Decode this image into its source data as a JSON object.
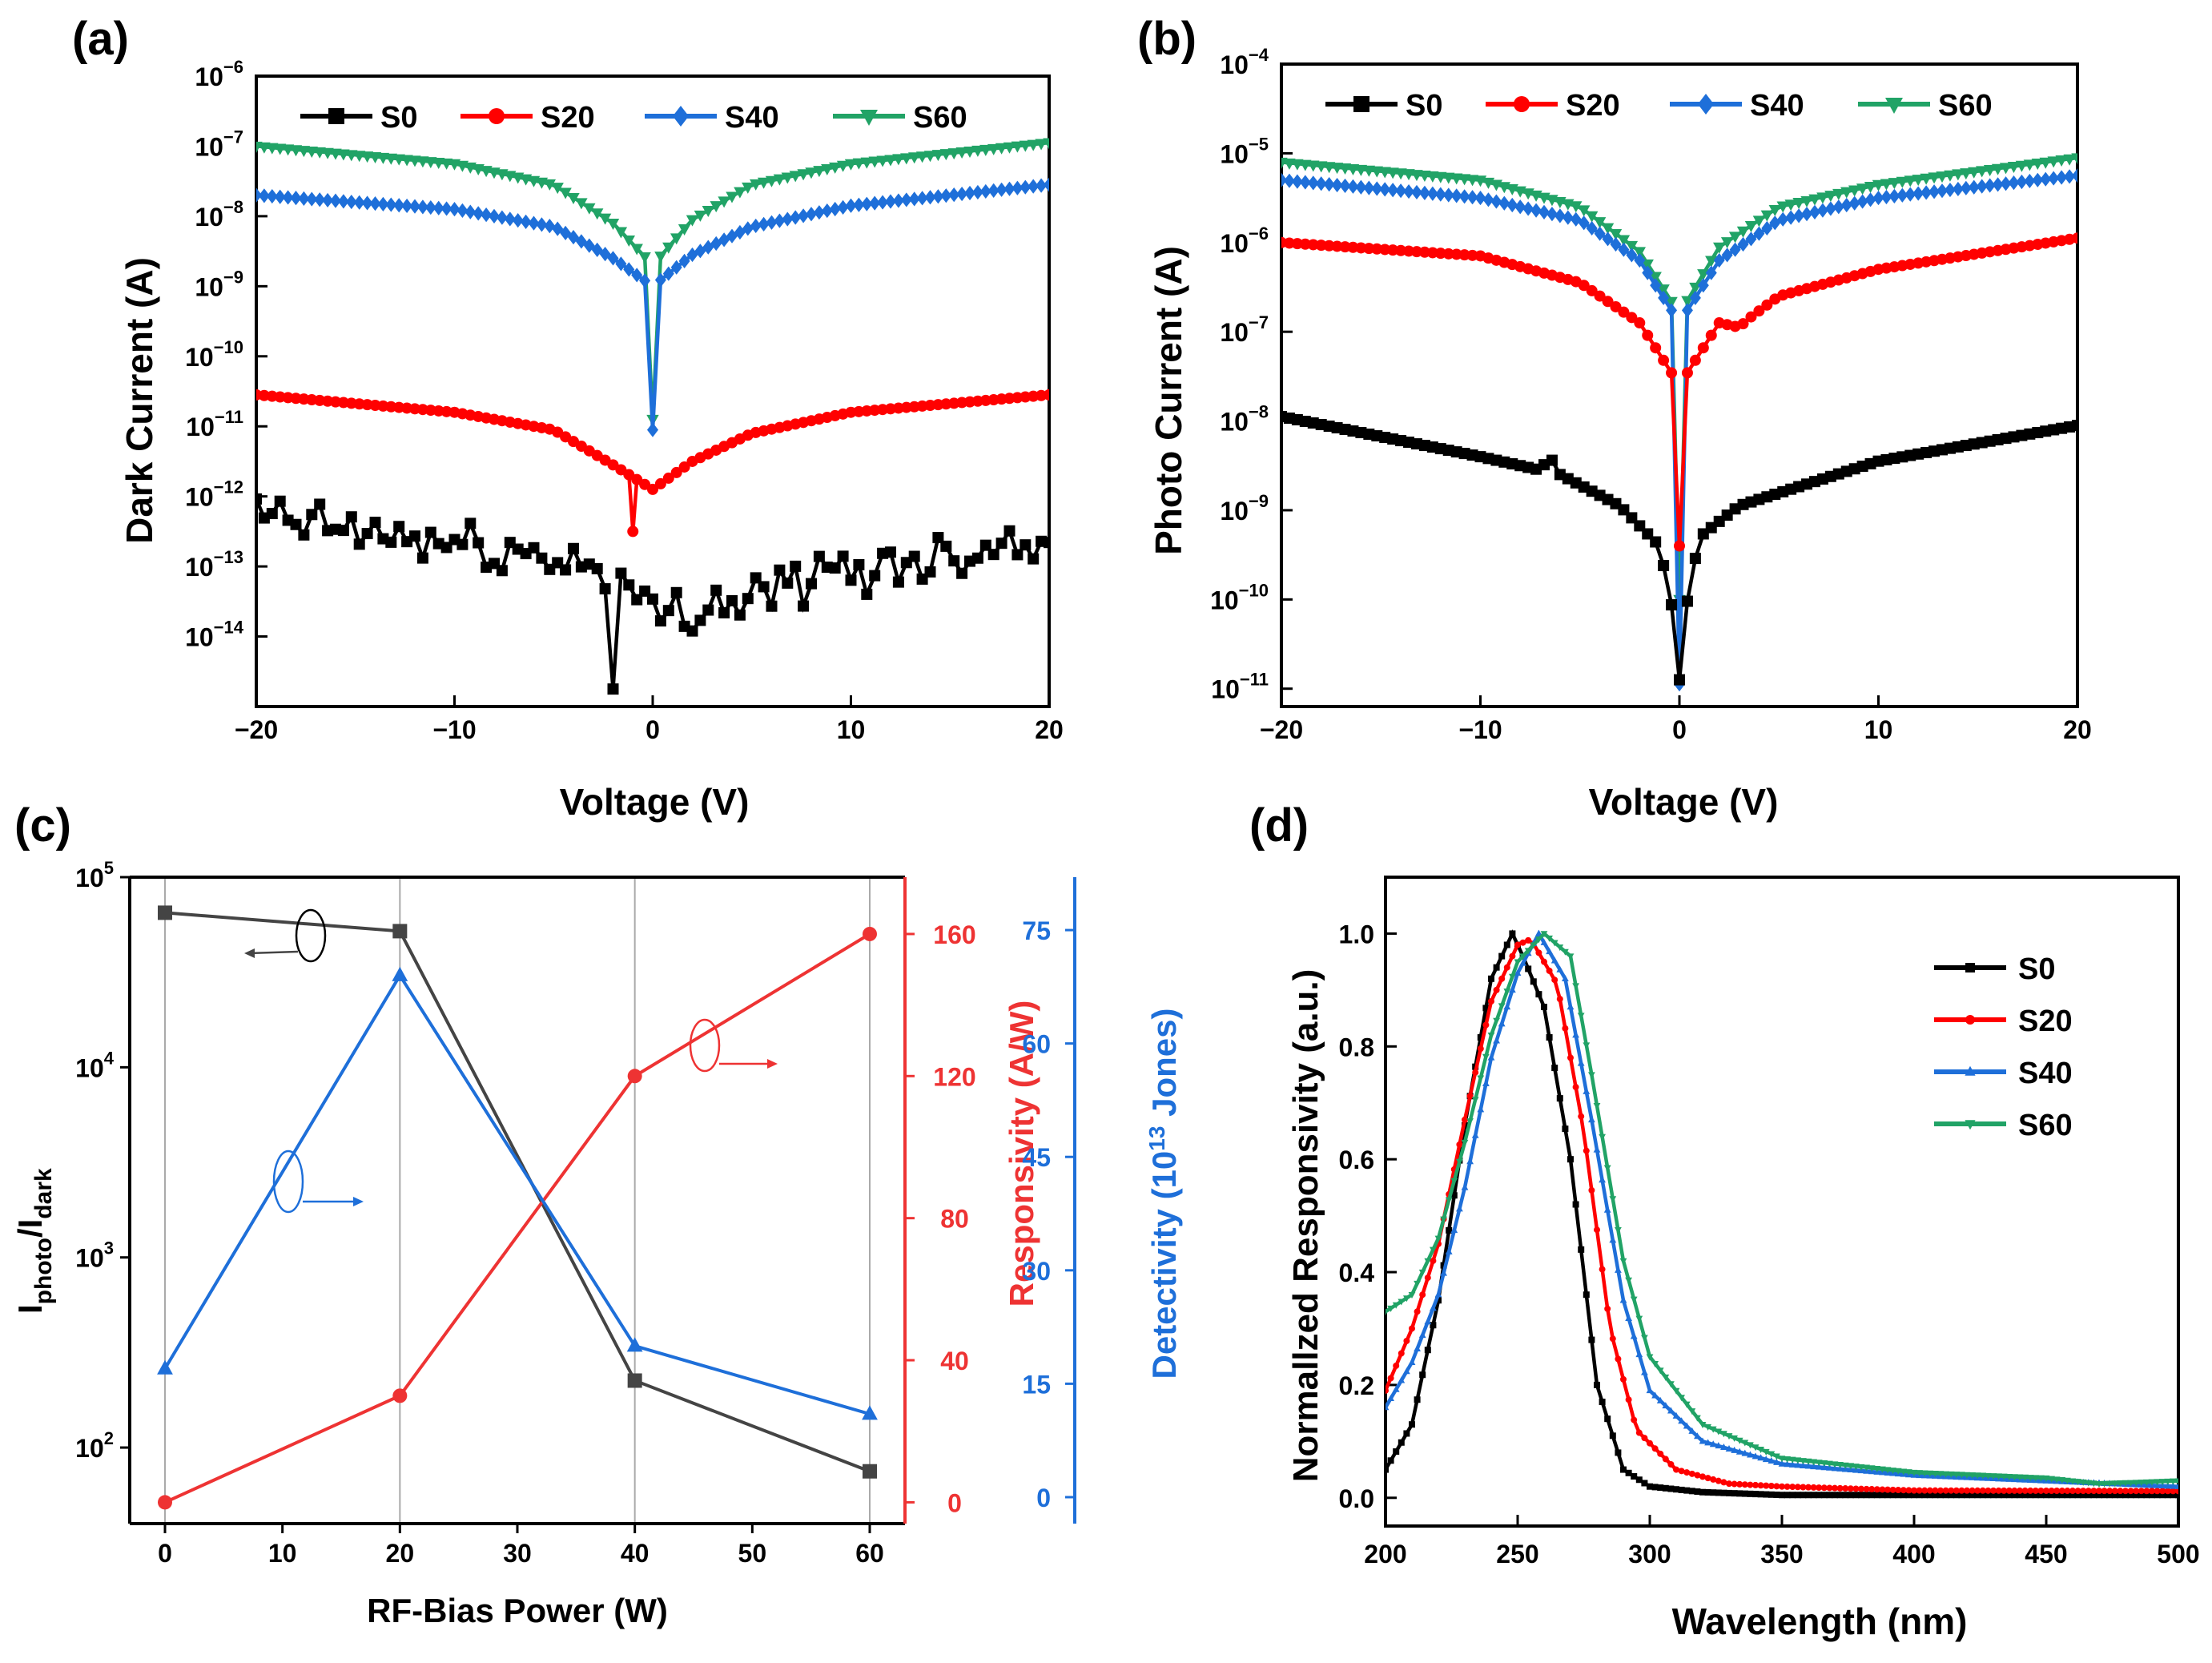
{
  "colors": {
    "S0": "#000000",
    "S20": "#ff0000",
    "S40": "#1e6fd9",
    "S60": "#21a366",
    "ratio": "#444444",
    "resp": "#ee3333",
    "det": "#1e6fd9"
  },
  "chart_data": [
    {
      "panel": "(a)",
      "type": "line",
      "yscale": "log",
      "xlabel": "Voltage (V)",
      "ylabel": "Dark Current (A)",
      "xlim": [
        -20,
        20
      ],
      "ylim_exp": [
        -15,
        -6
      ],
      "xticks": [
        -20,
        -10,
        0,
        10,
        20
      ],
      "xtick_labels": [
        "−20",
        "−10",
        "0",
        "10",
        "20"
      ],
      "ytick_exps": [
        -14,
        -13,
        -12,
        -11,
        -10,
        -9,
        -8,
        -7,
        -6
      ],
      "legend": [
        "S0",
        "S20",
        "S40",
        "S60"
      ],
      "series": [
        {
          "name": "S0",
          "marker": "square",
          "noisy": true,
          "x": [
            -20,
            -2,
            -1,
            0,
            20
          ],
          "logy": [
            -12.3,
            -13.0,
            -13.5,
            -13.7,
            -12.5
          ],
          "notch_x": -2,
          "notch_logy": -14.75
        },
        {
          "name": "S20",
          "marker": "circle",
          "x": [
            -20,
            -10,
            -5,
            -2,
            0,
            2,
            5,
            10,
            20
          ],
          "logy": [
            -10.55,
            -10.8,
            -11.05,
            -11.55,
            -11.9,
            -11.5,
            -11.1,
            -10.8,
            -10.55
          ],
          "notch_x": -1,
          "notch_logy": -12.5
        },
        {
          "name": "S40",
          "marker": "diamond",
          "x": [
            -20,
            -10,
            -5,
            -2,
            0,
            2,
            5,
            10,
            20
          ],
          "logy": [
            -7.7,
            -7.9,
            -8.15,
            -8.6,
            -9.0,
            -8.55,
            -8.15,
            -7.85,
            -7.55
          ],
          "notch_x": 0,
          "notch_logy": -11.05
        },
        {
          "name": "S60",
          "marker": "triangle-down",
          "x": [
            -20,
            -10,
            -5,
            -2,
            0,
            2,
            5,
            10,
            20
          ],
          "logy": [
            -7.0,
            -7.25,
            -7.55,
            -8.1,
            -8.7,
            -8.05,
            -7.55,
            -7.25,
            -6.95
          ],
          "notch_x": 0,
          "notch_logy": -10.9
        }
      ]
    },
    {
      "panel": "(b)",
      "type": "line",
      "yscale": "log",
      "xlabel": "Voltage (V)",
      "ylabel": "Photo Current (A)",
      "xlim": [
        -20,
        20
      ],
      "ylim_exp": [
        -11.2,
        -4
      ],
      "xticks": [
        -20,
        -10,
        0,
        10,
        20
      ],
      "xtick_labels": [
        "−20",
        "−10",
        "0",
        "10",
        "20"
      ],
      "ytick_exps": [
        -11,
        -10,
        -9,
        -8,
        -7,
        -6,
        -5,
        -4
      ],
      "legend": [
        "S0",
        "S20",
        "S40",
        "S60"
      ],
      "series": [
        {
          "name": "S0",
          "marker": "square",
          "x": [
            -20,
            -10,
            -7,
            -6.5,
            -6,
            -3,
            -1,
            0,
            1,
            3,
            10,
            20
          ],
          "logy": [
            -7.95,
            -8.4,
            -8.55,
            -8.4,
            -8.6,
            -8.95,
            -9.4,
            -10.5,
            -9.3,
            -8.95,
            -8.45,
            -8.05
          ],
          "notch_x": 0,
          "notch_logy": -10.9
        },
        {
          "name": "S20",
          "marker": "circle",
          "x": [
            -20,
            -10,
            -5,
            -2,
            0,
            2,
            3,
            3.5,
            5,
            10,
            20
          ],
          "logy": [
            -6.0,
            -6.15,
            -6.45,
            -6.9,
            -7.6,
            -6.9,
            -6.95,
            -6.85,
            -6.6,
            -6.3,
            -5.95
          ],
          "notch_x": 0,
          "notch_logy": -9.4
        },
        {
          "name": "S40",
          "marker": "diamond",
          "x": [
            -20,
            -10,
            -5,
            -2,
            0,
            2,
            5,
            10,
            20
          ],
          "logy": [
            -5.3,
            -5.5,
            -5.75,
            -6.2,
            -6.9,
            -6.2,
            -5.75,
            -5.5,
            -5.25
          ],
          "notch_x": 0,
          "notch_logy": -10.95
        },
        {
          "name": "S60",
          "marker": "triangle-down",
          "x": [
            -20,
            -10,
            -5,
            -2,
            0,
            2,
            5,
            10,
            20
          ],
          "logy": [
            -5.1,
            -5.3,
            -5.6,
            -6.1,
            -6.8,
            -6.05,
            -5.6,
            -5.35,
            -5.05
          ],
          "notch_x": 0,
          "notch_logy": -10.0
        }
      ]
    },
    {
      "panel": "(c)",
      "type": "line",
      "xlabel": "RF-Bias Power (W)",
      "ylabel_main": "I",
      "ylabel_sub1": "photo",
      "ylabel_slash": "/I",
      "ylabel_sub2": "dark",
      "x": [
        0,
        20,
        40,
        60
      ],
      "xlim": [
        -3,
        63
      ],
      "xticks": [
        0,
        10,
        20,
        30,
        40,
        50,
        60
      ],
      "left_axis": {
        "scale": "log",
        "ylim_exp": [
          1.6,
          5.0
        ],
        "tick_exps": [
          2,
          3,
          4,
          5
        ]
      },
      "right_axis_1": {
        "label": "Responsivity (A/W)",
        "ylim": [
          -6,
          176
        ],
        "ticks": [
          0,
          40,
          80,
          120,
          160
        ]
      },
      "right_axis_2": {
        "label_pre": "Detectivity (10",
        "label_exp": "13",
        "label_post": " Jones)",
        "ylim": [
          -3.5,
          82
        ],
        "ticks": [
          0,
          15,
          30,
          45,
          60,
          75
        ]
      },
      "series": [
        {
          "name": "Iphoto/Idark",
          "axis": "left",
          "marker": "square",
          "values": [
            65000,
            52000,
            225,
            75
          ]
        },
        {
          "name": "Responsivity",
          "axis": "right1",
          "marker": "circle",
          "values": [
            0,
            30,
            120,
            160
          ]
        },
        {
          "name": "Detectivity",
          "axis": "right2",
          "marker": "triangle",
          "values": [
            17,
            69,
            20,
            11
          ]
        }
      ]
    },
    {
      "panel": "(d)",
      "type": "line",
      "xlabel": "Wavelength (nm)",
      "ylabel": "Normallzed Responsivity (a.u.)",
      "xlim": [
        200,
        500
      ],
      "ylim": [
        -0.05,
        1.1
      ],
      "xticks": [
        200,
        250,
        300,
        350,
        400,
        450,
        500
      ],
      "yticks": [
        0.0,
        0.2,
        0.4,
        0.6,
        0.8,
        1.0
      ],
      "ytick_labels": [
        "0.0",
        "0.2",
        "0.4",
        "0.6",
        "0.8",
        "1.0"
      ],
      "legend": [
        "S0",
        "S20",
        "S40",
        "S60"
      ],
      "series": [
        {
          "name": "S0",
          "marker": "square",
          "x": [
            200,
            210,
            220,
            230,
            240,
            248,
            252,
            260,
            270,
            280,
            290,
            300,
            320,
            350,
            400,
            500
          ],
          "y": [
            0.05,
            0.13,
            0.35,
            0.66,
            0.92,
            1.0,
            0.96,
            0.87,
            0.6,
            0.2,
            0.05,
            0.02,
            0.01,
            0.005,
            0.005,
            0.005
          ]
        },
        {
          "name": "S20",
          "marker": "circle",
          "x": [
            200,
            210,
            220,
            230,
            240,
            250,
            255,
            265,
            275,
            285,
            295,
            310,
            330,
            350,
            400,
            500
          ],
          "y": [
            0.19,
            0.3,
            0.45,
            0.67,
            0.88,
            0.98,
            0.99,
            0.91,
            0.65,
            0.3,
            0.12,
            0.05,
            0.025,
            0.02,
            0.013,
            0.012
          ]
        },
        {
          "name": "S40",
          "marker": "triangle",
          "x": [
            200,
            210,
            220,
            230,
            240,
            250,
            258,
            268,
            278,
            290,
            300,
            320,
            350,
            400,
            450,
            500
          ],
          "y": [
            0.16,
            0.24,
            0.36,
            0.55,
            0.78,
            0.93,
            1.0,
            0.92,
            0.67,
            0.35,
            0.19,
            0.1,
            0.06,
            0.04,
            0.03,
            0.02
          ]
        },
        {
          "name": "S60",
          "marker": "triangle-down",
          "x": [
            200,
            210,
            220,
            230,
            240,
            250,
            260,
            270,
            278,
            290,
            300,
            320,
            350,
            400,
            450,
            470,
            500
          ],
          "y": [
            0.33,
            0.36,
            0.46,
            0.63,
            0.82,
            0.95,
            1.0,
            0.96,
            0.75,
            0.42,
            0.25,
            0.13,
            0.07,
            0.045,
            0.035,
            0.025,
            0.03
          ]
        }
      ]
    }
  ]
}
